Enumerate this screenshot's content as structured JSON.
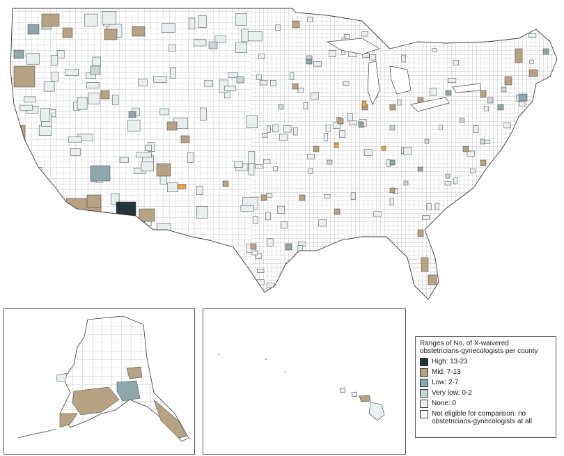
{
  "colors": {
    "high": "#23343b",
    "mid": "#b7a283",
    "low": "#8ea7ad",
    "very_low": "#c7d6d9",
    "none": "#e8efef",
    "not_eligible": "#ffffff",
    "outline": "#3a3a3a",
    "highlight": "#f1a03c"
  },
  "legend": {
    "title": "Ranges of No. of X-waivered obstetricians-gynecologists per county",
    "items": [
      {
        "key": "high",
        "label": "High: 13-23"
      },
      {
        "key": "mid",
        "label": "Mid: 7-13"
      },
      {
        "key": "low",
        "label": "Low: 2-7"
      },
      {
        "key": "very_low",
        "label": "Very low: 0-2"
      },
      {
        "key": "none",
        "label": "None: 0"
      },
      {
        "key": "not_eligible",
        "label": "Not eligible for comparison: no obstetricians-gynecologists at all"
      }
    ]
  }
}
